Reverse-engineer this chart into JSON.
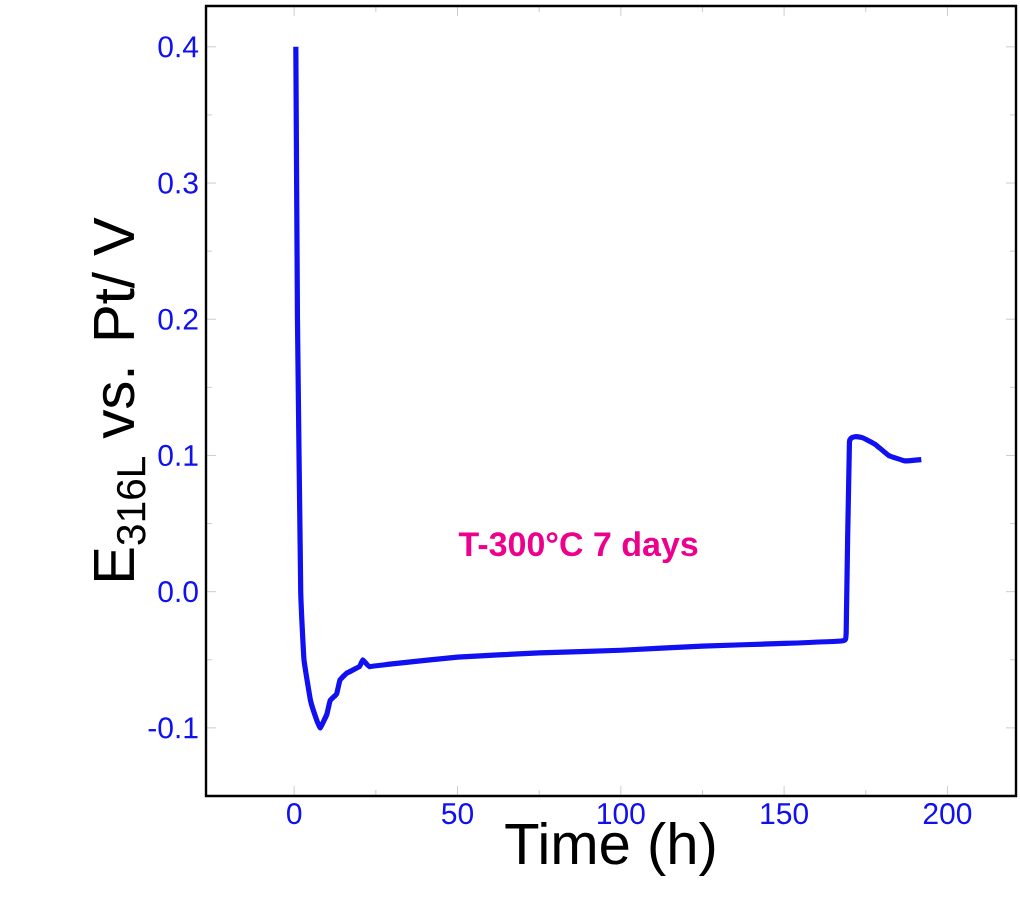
{
  "chart_data": {
    "type": "line",
    "xlabel": "Time (h)",
    "ylabel": "E$_{316L}$ vs. Pt/ V",
    "annotations": [
      "T-300°C  7 days"
    ],
    "xlim": [
      -27,
      221
    ],
    "ylim": [
      -0.15,
      0.43
    ],
    "xticks": [
      0,
      50,
      100,
      150,
      200
    ],
    "yticks": [
      -0.1,
      {
        "value": 0,
        "label": "0.0"
      },
      0.1,
      0.2,
      0.3,
      0.4
    ],
    "grid": false,
    "marker": "none",
    "line_style": "solid",
    "series": [
      {
        "color": "#1010f0",
        "x": [
          0.5,
          1,
          2,
          3,
          5,
          7,
          8,
          10,
          11,
          13,
          14,
          16,
          20,
          21,
          23,
          30,
          50,
          75,
          100,
          125,
          150,
          168,
          169,
          170,
          174,
          178,
          182,
          187,
          192
        ],
        "values": [
          0.4,
          0.2,
          0.0,
          -0.05,
          -0.08,
          -0.095,
          -0.1,
          -0.09,
          -0.08,
          -0.075,
          -0.065,
          -0.06,
          -0.055,
          -0.05,
          -0.055,
          -0.053,
          -0.048,
          -0.045,
          -0.043,
          -0.04,
          -0.038,
          -0.036,
          -0.03,
          0.11,
          0.113,
          0.108,
          0.1,
          0.096,
          0.097
        ]
      }
    ]
  }
}
